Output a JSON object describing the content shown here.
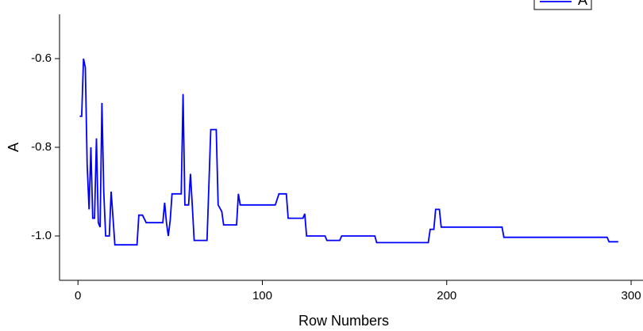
{
  "chart_data": {
    "type": "line",
    "x_label": "Row Numbers",
    "y_label": "A",
    "x": [
      1,
      2,
      3,
      4,
      5,
      6,
      7,
      8,
      9,
      10,
      11,
      12,
      13,
      14,
      15,
      16,
      17,
      18,
      19,
      20,
      32,
      33,
      35,
      37,
      46,
      47,
      48,
      49,
      50,
      51,
      56,
      57,
      58,
      60,
      61,
      62,
      63,
      70,
      72,
      75,
      76,
      78,
      79,
      86,
      87,
      88,
      107,
      109,
      113,
      114,
      122,
      123,
      124,
      134,
      135,
      142,
      143,
      161,
      162,
      190,
      191,
      193,
      194,
      196,
      197,
      230,
      231,
      287,
      288,
      293
    ],
    "series": [
      {
        "name": "A",
        "color": "#0000ff",
        "values": [
          -0.73,
          -0.73,
          -0.6,
          -0.62,
          -0.84,
          -0.94,
          -0.8,
          -0.96,
          -0.96,
          -0.78,
          -0.97,
          -0.98,
          -0.7,
          -0.9,
          -1.0,
          -1.0,
          -1.0,
          -0.9,
          -0.96,
          -1.02,
          -1.02,
          -0.953,
          -0.953,
          -0.97,
          -0.97,
          -0.925,
          -0.97,
          -1.0,
          -0.965,
          -0.905,
          -0.905,
          -0.68,
          -0.93,
          -0.93,
          -0.86,
          -0.93,
          -1.01,
          -1.01,
          -0.76,
          -0.76,
          -0.93,
          -0.945,
          -0.975,
          -0.975,
          -0.905,
          -0.93,
          -0.93,
          -0.905,
          -0.905,
          -0.96,
          -0.96,
          -0.95,
          -1.0,
          -1.0,
          -1.01,
          -1.01,
          -1.0,
          -1.0,
          -1.015,
          -1.015,
          -0.985,
          -0.985,
          -0.94,
          -0.94,
          -0.98,
          -0.98,
          -1.003,
          -1.003,
          -1.013,
          -1.013
        ]
      }
    ],
    "xlim": [
      -10,
      303
    ],
    "xticks": [
      0,
      100,
      200,
      300
    ],
    "ylim": [
      -1.1,
      -0.5
    ],
    "yticks": [
      -0.6,
      -0.8,
      {
        "value": -1.0,
        "label": "-1.0"
      }
    ]
  }
}
